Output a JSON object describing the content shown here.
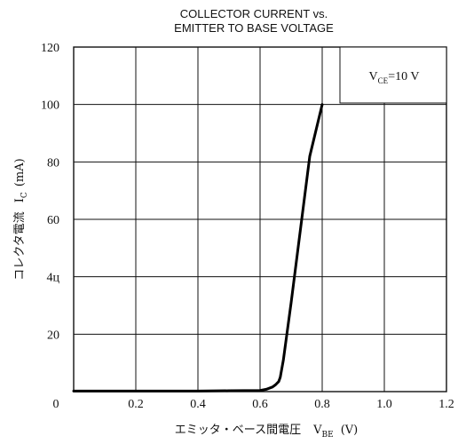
{
  "chart_data": {
    "type": "line",
    "title": [
      "COLLECTOR CURRENT vs.",
      "EMITTER TO BASE VOLTAGE"
    ],
    "xlabel": "エミッタ・ベース間電圧",
    "xlabel_symbol": "V",
    "xlabel_symbol_sub": "BE",
    "xlabel_unit": "(V)",
    "ylabel": "コレクタ電流",
    "ylabel_symbol": "I",
    "ylabel_symbol_sub": "C",
    "ylabel_unit": "(mA)",
    "xlim": [
      0,
      1.2
    ],
    "ylim": [
      0,
      120
    ],
    "x_ticks": [
      0,
      0.2,
      0.4,
      0.6,
      0.8,
      1.0,
      1.2
    ],
    "x_tick_labels": [
      "0",
      "0.2",
      "0.4",
      "0.6",
      "0.8",
      "1.0",
      "1.2"
    ],
    "y_ticks": [
      0,
      20,
      40,
      60,
      80,
      100,
      120
    ],
    "y_tick_labels": [
      "0",
      "20",
      "4ц",
      "60",
      "80",
      "100",
      "120"
    ],
    "grid": true,
    "annotation": {
      "main": "V",
      "sub": "CE",
      "rest": "=10  V",
      "position": "top-right"
    },
    "series": [
      {
        "x": [
          0,
          0.2,
          0.4,
          0.5,
          0.6,
          0.62,
          0.64,
          0.65,
          0.66,
          0.665,
          0.67,
          0.675,
          0.68,
          0.7,
          0.72,
          0.74,
          0.76,
          0.78,
          0.8
        ],
        "y": [
          0.2,
          0.2,
          0.2,
          0.3,
          0.4,
          0.8,
          1.6,
          2.4,
          3.5,
          5,
          8,
          11,
          15,
          31,
          48,
          65,
          82,
          91,
          100
        ]
      }
    ],
    "colors": {
      "line": "#000000",
      "grid": "#111111",
      "background": "#ffffff"
    }
  }
}
